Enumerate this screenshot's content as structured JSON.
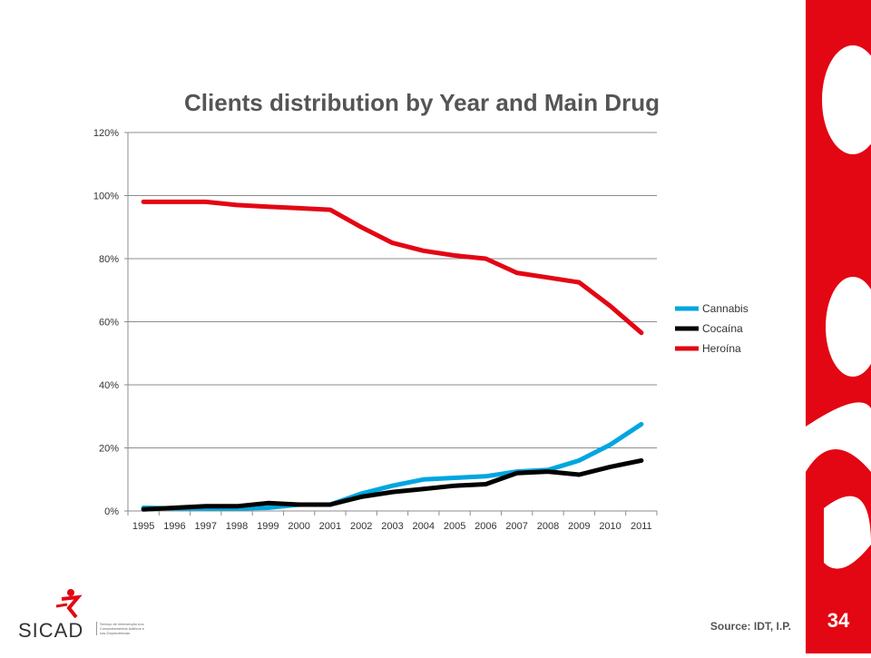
{
  "slide": {
    "source": "Source: IDT, I.P.",
    "page_number": "34",
    "logo_text": "SICAD",
    "logo_subtext": "Serviço de Intervenção nos Comportamentos Aditivos e nas Dependências",
    "accent_color": "#e30613"
  },
  "chart_data": {
    "type": "line",
    "title": "Clients distribution by Year and Main Drug",
    "xlabel": "",
    "ylabel": "",
    "x": [
      "1995",
      "1996",
      "1997",
      "1998",
      "1999",
      "2000",
      "2001",
      "2002",
      "2003",
      "2004",
      "2005",
      "2006",
      "2007",
      "2008",
      "2009",
      "2010",
      "2011"
    ],
    "yticks": [
      "0%",
      "20%",
      "40%",
      "60%",
      "80%",
      "100%",
      "120%"
    ],
    "ylim": [
      0,
      120
    ],
    "grid": true,
    "legend_position": "right",
    "series": [
      {
        "name": "Cannabis",
        "color": "#00a6e0",
        "values": [
          1,
          0.8,
          0.8,
          0.8,
          1,
          2,
          2,
          5.5,
          8,
          10,
          10.5,
          11,
          12.5,
          13,
          16,
          21,
          27.5
        ]
      },
      {
        "name": "Cocaína",
        "color": "#000000",
        "values": [
          0.5,
          1,
          1.5,
          1.5,
          2.5,
          2,
          2,
          4.5,
          6,
          7,
          8,
          8.5,
          12,
          12.5,
          11.5,
          14,
          16
        ]
      },
      {
        "name": "Heroína",
        "color": "#e30613",
        "values": [
          98,
          98,
          98,
          97,
          96.5,
          96,
          95.5,
          90,
          85,
          82.5,
          81,
          80,
          75.5,
          74,
          72.5,
          65,
          56.5
        ]
      }
    ]
  }
}
